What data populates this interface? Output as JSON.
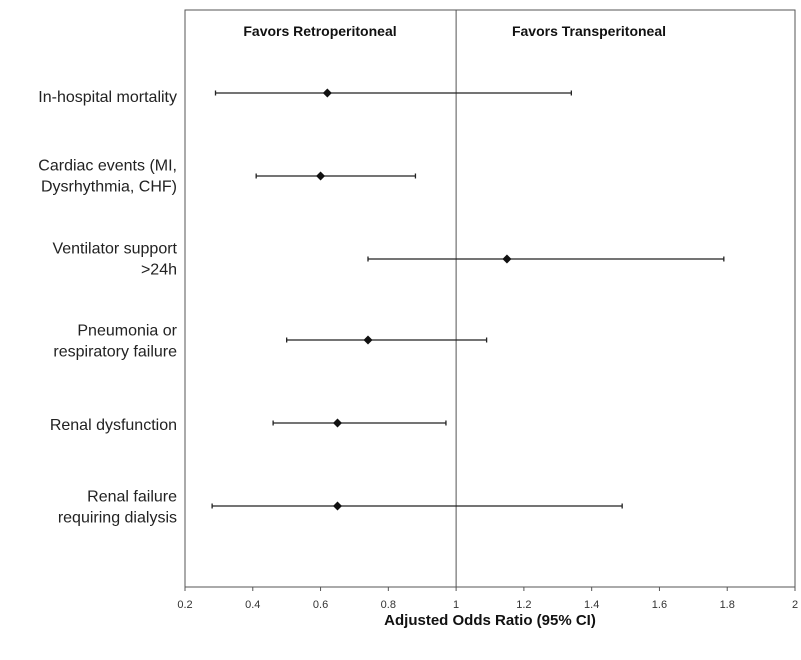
{
  "chart_data": {
    "type": "forest",
    "xlabel": "Adjusted Odds Ratio (95% CI)",
    "xlim": [
      0.2,
      2
    ],
    "xticks": [
      "0.2",
      "0.4",
      "0.6",
      "0.8",
      "1",
      "1.2",
      "1.4",
      "1.6",
      "1.8",
      "2"
    ],
    "reference_line": 1,
    "header_left": "Favors Retroperitoneal",
    "header_right": "Favors Transperitoneal",
    "grid": false,
    "rows": [
      {
        "label": [
          "In-hospital mortality"
        ],
        "or": 0.62,
        "lower": 0.29,
        "upper": 1.34
      },
      {
        "label": [
          "Cardiac events (MI,",
          "Dysrhythmia, CHF)"
        ],
        "or": 0.6,
        "lower": 0.41,
        "upper": 0.88
      },
      {
        "label": [
          "Ventilator support",
          ">24h"
        ],
        "or": 1.15,
        "lower": 0.74,
        "upper": 1.79
      },
      {
        "label": [
          "Pneumonia or",
          "respiratory failure"
        ],
        "or": 0.74,
        "lower": 0.5,
        "upper": 1.09
      },
      {
        "label": [
          "Renal dysfunction"
        ],
        "or": 0.65,
        "lower": 0.46,
        "upper": 0.97
      },
      {
        "label": [
          "Renal failure",
          "requiring dialysis"
        ],
        "or": 0.65,
        "lower": 0.28,
        "upper": 1.49
      }
    ]
  }
}
